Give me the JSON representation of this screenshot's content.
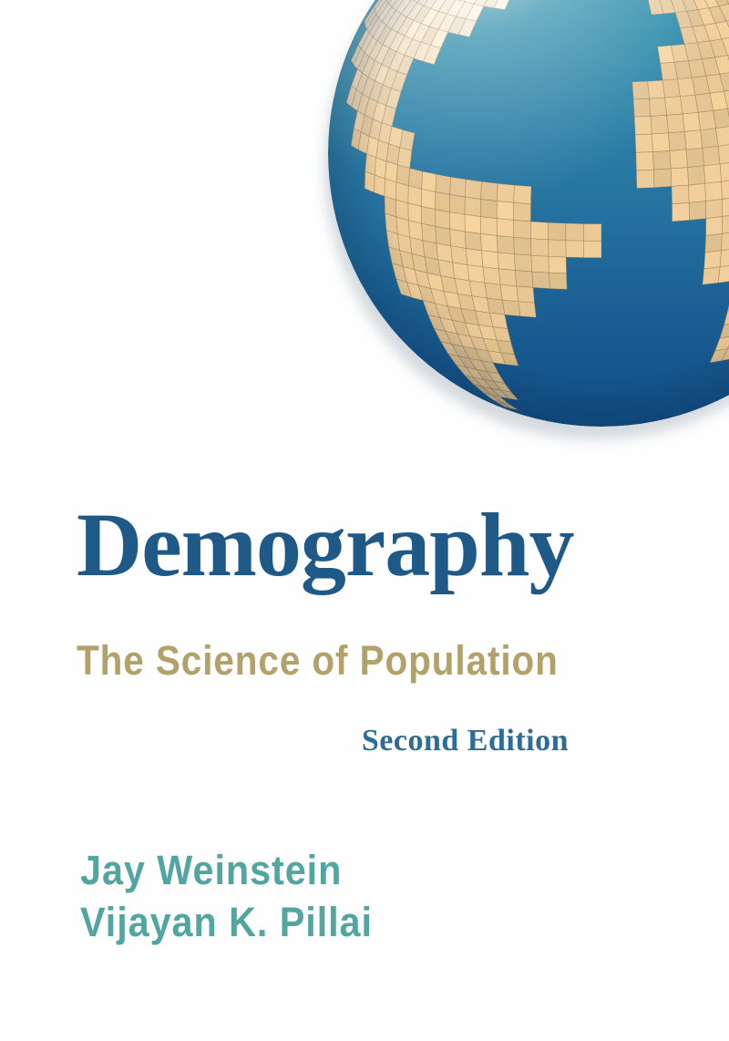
{
  "cover": {
    "title": "Demography",
    "subtitle": "The Science of Population",
    "edition": "Second Edition",
    "authors": [
      "Jay Weinstein",
      "Vijayan K. Pillai"
    ]
  },
  "globe": {
    "icon_name": "mosaic-tile-globe-illustration",
    "description_visible_landmasses": "North America, Greenland, Europe, West Africa, South America as tan mosaic tiles on blue ocean sphere, clipped at top and right edges"
  },
  "colors": {
    "background": "#fefefe",
    "title": "#1e5988",
    "subtitle": "#b2a169",
    "edition": "#2d6c97",
    "authors": "#53a5a0",
    "globe": {
      "land": "#ebc996",
      "land_highlight": "#f8efe1",
      "grout": "#8a6f45",
      "ocean_top": "#46a5b5",
      "ocean_upper": "#2e8cab",
      "ocean_mid": "#2877a3",
      "ocean_lower": "#1a5e92",
      "ocean_bottom": "#114e85",
      "shadow": "#b7c1c8"
    }
  }
}
